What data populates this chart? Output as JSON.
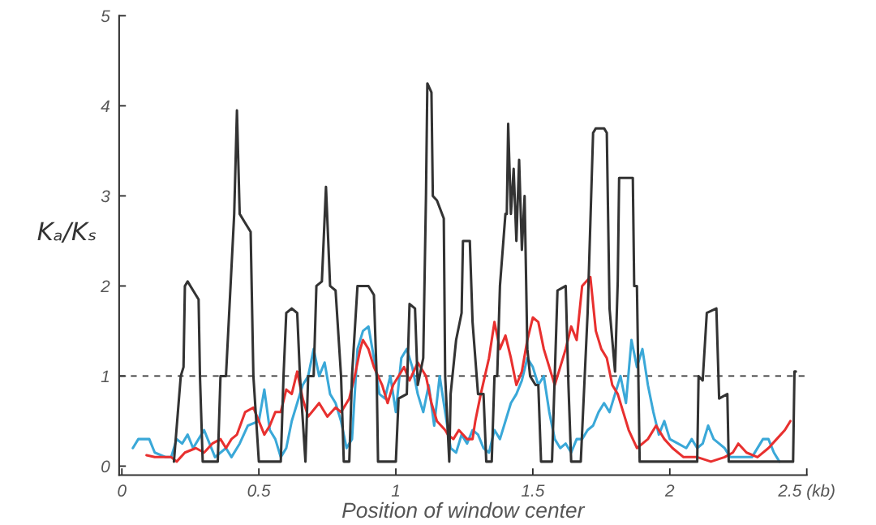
{
  "chart_data": {
    "type": "line",
    "xlabel": "Position of window center",
    "ylabel": "Kₐ/Kₛ",
    "xlim": [
      -0.01,
      2.5
    ],
    "ylim": [
      -0.1,
      5
    ],
    "xticks": [
      0,
      0.5,
      1,
      1.5,
      2,
      {
        "value": 2.5,
        "label": "2.5 (kb)"
      }
    ],
    "yticks": [
      0,
      1,
      2,
      3,
      4,
      5
    ],
    "line_style": "solid",
    "marker": "none",
    "ref_lines": [
      {
        "axis": "y",
        "value": 1,
        "color": "#333333",
        "line_style": "dashed"
      }
    ],
    "series": [
      {
        "color": "#3aa8d8",
        "x": [
          0.04,
          0.06,
          0.1,
          0.12,
          0.16,
          0.18,
          0.2,
          0.22,
          0.24,
          0.26,
          0.28,
          0.3,
          0.32,
          0.34,
          0.36,
          0.38,
          0.4,
          0.43,
          0.46,
          0.5,
          0.52,
          0.54,
          0.56,
          0.58,
          0.6,
          0.62,
          0.64,
          0.66,
          0.68,
          0.7,
          0.72,
          0.74,
          0.76,
          0.78,
          0.8,
          0.82,
          0.84,
          0.86,
          0.88,
          0.9,
          0.92,
          0.94,
          0.96,
          0.98,
          1.0,
          1.02,
          1.04,
          1.06,
          1.08,
          1.1,
          1.12,
          1.14,
          1.16,
          1.18,
          1.2,
          1.22,
          1.24,
          1.26,
          1.28,
          1.3,
          1.32,
          1.34,
          1.36,
          1.38,
          1.4,
          1.42,
          1.44,
          1.46,
          1.48,
          1.5,
          1.52,
          1.54,
          1.56,
          1.58,
          1.6,
          1.62,
          1.64,
          1.66,
          1.68,
          1.7,
          1.72,
          1.74,
          1.76,
          1.78,
          1.8,
          1.82,
          1.84,
          1.86,
          1.88,
          1.9,
          1.92,
          1.94,
          1.96,
          1.98,
          2.0,
          2.03,
          2.06,
          2.08,
          2.1,
          2.12,
          2.14,
          2.16,
          2.18,
          2.2,
          2.22,
          2.26,
          2.3,
          2.34,
          2.36,
          2.38,
          2.4
        ],
        "values": [
          0.2,
          0.3,
          0.3,
          0.15,
          0.1,
          0.1,
          0.3,
          0.25,
          0.35,
          0.2,
          0.3,
          0.4,
          0.25,
          0.1,
          0.15,
          0.2,
          0.1,
          0.25,
          0.45,
          0.5,
          0.85,
          0.4,
          0.3,
          0.1,
          0.2,
          0.5,
          0.7,
          0.9,
          1.0,
          1.3,
          1.0,
          1.15,
          0.8,
          0.7,
          0.5,
          0.2,
          0.3,
          1.3,
          1.5,
          1.55,
          1.2,
          0.8,
          0.75,
          1.0,
          0.6,
          1.2,
          1.3,
          1.1,
          0.8,
          0.6,
          0.9,
          0.45,
          1.0,
          0.6,
          0.2,
          0.15,
          0.35,
          0.25,
          0.4,
          0.35,
          0.2,
          0.15,
          0.4,
          0.3,
          0.5,
          0.7,
          0.8,
          0.95,
          1.2,
          1.1,
          0.9,
          1.0,
          0.6,
          0.3,
          0.2,
          0.25,
          0.15,
          0.3,
          0.3,
          0.4,
          0.45,
          0.6,
          0.7,
          0.6,
          0.8,
          1.0,
          0.7,
          1.4,
          1.1,
          1.3,
          0.9,
          0.6,
          0.35,
          0.5,
          0.3,
          0.25,
          0.2,
          0.3,
          0.2,
          0.25,
          0.45,
          0.3,
          0.25,
          0.2,
          0.1,
          0.1,
          0.1,
          0.3,
          0.3,
          0.15,
          0.05
        ]
      },
      {
        "color": "#e8302f",
        "x": [
          0.09,
          0.12,
          0.18,
          0.2,
          0.23,
          0.27,
          0.3,
          0.33,
          0.36,
          0.38,
          0.4,
          0.42,
          0.45,
          0.48,
          0.5,
          0.52,
          0.54,
          0.56,
          0.58,
          0.6,
          0.62,
          0.64,
          0.66,
          0.68,
          0.72,
          0.75,
          0.78,
          0.8,
          0.83,
          0.85,
          0.87,
          0.88,
          0.9,
          0.92,
          0.95,
          0.97,
          0.99,
          1.01,
          1.03,
          1.05,
          1.08,
          1.11,
          1.13,
          1.15,
          1.18,
          1.19,
          1.21,
          1.23,
          1.26,
          1.28,
          1.29,
          1.31,
          1.34,
          1.36,
          1.38,
          1.4,
          1.42,
          1.44,
          1.46,
          1.48,
          1.5,
          1.52,
          1.54,
          1.56,
          1.58,
          1.6,
          1.62,
          1.64,
          1.66,
          1.68,
          1.71,
          1.73,
          1.75,
          1.77,
          1.79,
          1.81,
          1.83,
          1.85,
          1.88,
          1.92,
          1.95,
          1.98,
          2.01,
          2.05,
          2.1,
          2.15,
          2.2,
          2.23,
          2.25,
          2.28,
          2.32,
          2.36,
          2.39,
          2.42,
          2.44
        ],
        "values": [
          0.12,
          0.1,
          0.1,
          0.05,
          0.15,
          0.2,
          0.15,
          0.25,
          0.3,
          0.2,
          0.3,
          0.35,
          0.6,
          0.65,
          0.5,
          0.35,
          0.45,
          0.6,
          0.6,
          0.85,
          0.8,
          1.05,
          0.75,
          0.55,
          0.7,
          0.55,
          0.65,
          0.6,
          0.75,
          1.0,
          1.3,
          1.4,
          1.3,
          1.1,
          0.9,
          0.7,
          0.9,
          1.0,
          1.1,
          0.95,
          1.15,
          1.0,
          0.7,
          0.5,
          0.4,
          0.35,
          0.3,
          0.4,
          0.3,
          0.3,
          0.5,
          0.8,
          1.2,
          1.6,
          1.3,
          1.45,
          1.2,
          0.9,
          1.05,
          1.4,
          1.65,
          1.6,
          1.3,
          1.1,
          0.9,
          1.1,
          1.3,
          1.55,
          1.4,
          2.0,
          2.1,
          1.5,
          1.3,
          1.2,
          0.9,
          0.8,
          0.6,
          0.4,
          0.2,
          0.3,
          0.45,
          0.3,
          0.2,
          0.1,
          0.1,
          0.05,
          0.1,
          0.15,
          0.25,
          0.15,
          0.1,
          0.2,
          0.3,
          0.4,
          0.5
        ]
      },
      {
        "color": "#333333",
        "x": [
          0.19,
          0.215,
          0.225,
          0.23,
          0.24,
          0.26,
          0.28,
          0.285,
          0.295,
          0.35,
          0.36,
          0.38,
          0.41,
          0.42,
          0.43,
          0.45,
          0.47,
          0.48,
          0.5,
          0.58,
          0.59,
          0.6,
          0.62,
          0.64,
          0.65,
          0.67,
          0.68,
          0.7,
          0.71,
          0.73,
          0.745,
          0.76,
          0.78,
          0.8,
          0.81,
          0.83,
          0.84,
          0.86,
          0.9,
          0.92,
          0.93,
          0.935,
          1.0,
          1.01,
          1.04,
          1.05,
          1.07,
          1.08,
          1.1,
          1.11,
          1.115,
          1.13,
          1.135,
          1.15,
          1.175,
          1.18,
          1.195,
          1.2,
          1.22,
          1.24,
          1.245,
          1.27,
          1.28,
          1.3,
          1.32,
          1.33,
          1.35,
          1.36,
          1.37,
          1.38,
          1.4,
          1.405,
          1.41,
          1.42,
          1.43,
          1.44,
          1.45,
          1.46,
          1.47,
          1.48,
          1.49,
          1.51,
          1.52,
          1.53,
          1.57,
          1.58,
          1.59,
          1.62,
          1.63,
          1.64,
          1.675,
          1.7,
          1.72,
          1.73,
          1.76,
          1.77,
          1.78,
          1.8,
          1.81,
          1.815,
          1.865,
          1.87,
          1.88,
          1.89,
          2.1,
          2.105,
          2.12,
          2.135,
          2.17,
          2.18,
          2.21,
          2.215,
          2.45,
          2.455,
          2.46
        ],
        "values": [
          0.05,
          1.0,
          1.1,
          2.0,
          2.05,
          1.95,
          1.85,
          1.0,
          0.05,
          0.05,
          1.0,
          1.0,
          2.8,
          3.95,
          2.8,
          2.7,
          2.6,
          1.0,
          0.05,
          0.05,
          1.0,
          1.7,
          1.75,
          1.7,
          1.0,
          0.05,
          1.0,
          1.0,
          2.0,
          2.05,
          3.1,
          2.0,
          1.95,
          1.0,
          0.05,
          0.05,
          1.0,
          2.0,
          2.0,
          1.9,
          1.0,
          0.05,
          0.05,
          0.75,
          0.8,
          1.8,
          1.75,
          0.9,
          1.2,
          3.0,
          4.25,
          4.15,
          3.0,
          2.95,
          2.75,
          1.0,
          0.05,
          0.8,
          1.4,
          1.7,
          2.5,
          2.5,
          1.6,
          0.8,
          0.8,
          0.05,
          0.05,
          1.0,
          1.0,
          2.0,
          2.8,
          2.8,
          3.8,
          2.8,
          3.3,
          2.5,
          3.4,
          2.4,
          3.0,
          1.3,
          1.0,
          0.9,
          0.9,
          0.05,
          0.05,
          1.0,
          1.95,
          2.0,
          0.9,
          0.05,
          0.05,
          1.7,
          3.7,
          3.75,
          3.75,
          3.7,
          1.75,
          1.05,
          2.05,
          3.2,
          3.2,
          2.0,
          2.0,
          0.05,
          0.05,
          1.0,
          0.95,
          1.7,
          1.75,
          0.75,
          0.8,
          0.05,
          0.05,
          1.05,
          1.05
        ]
      }
    ]
  }
}
